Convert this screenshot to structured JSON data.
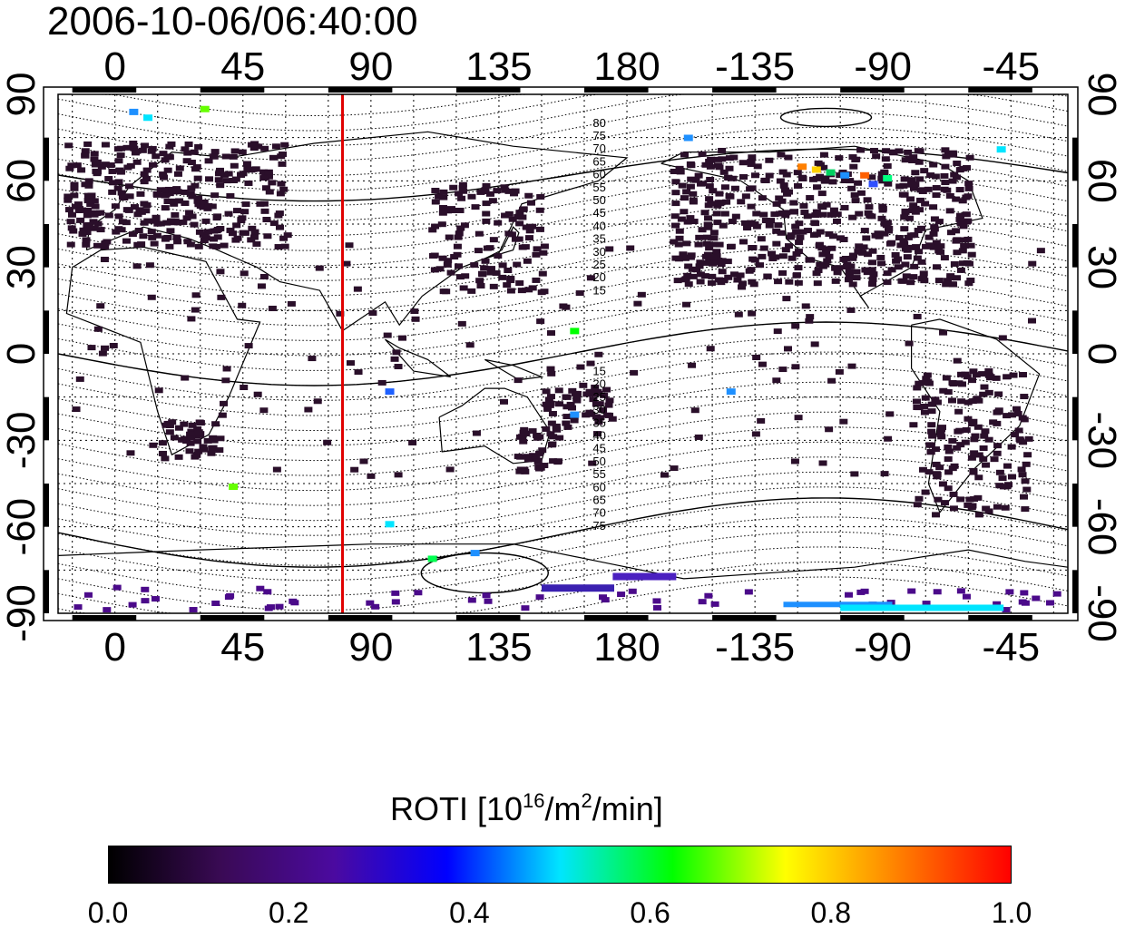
{
  "title": "2006-10-06/06:40:00",
  "map": {
    "top_lon_labels": [
      "0",
      "45",
      "90",
      "135",
      "180",
      "-135",
      "-90",
      "-45"
    ],
    "bottom_lon_labels": [
      "0",
      "45",
      "90",
      "135",
      "180",
      "-135",
      "-90",
      "-45"
    ],
    "left_lat_labels": [
      "90",
      "60",
      "30",
      "0",
      "-30",
      "-60",
      "-90"
    ],
    "right_lat_labels": [
      "90",
      "60",
      "30",
      "0",
      "-30",
      "-60",
      "-90"
    ],
    "lon_values": [
      0,
      45,
      90,
      135,
      180,
      225,
      270,
      315
    ],
    "lat_values": [
      90,
      60,
      30,
      0,
      -30,
      -60,
      -90
    ],
    "lon_range": [
      -20,
      335
    ],
    "lat_range": [
      -90,
      90
    ],
    "marker_line_lon": 80,
    "marker_line_color": "#e00000",
    "north_contour_labels": [
      "80",
      "75",
      "70",
      "65",
      "60",
      "55",
      "50",
      "45",
      "40",
      "35",
      "30",
      "25",
      "20",
      "15"
    ],
    "south_contour_labels": [
      "15",
      "20",
      "25",
      "30",
      "35",
      "40",
      "45",
      "50",
      "55",
      "60",
      "65",
      "70",
      "75"
    ]
  },
  "colorbar": {
    "title_main": "ROTI  [10",
    "title_exp1": "16",
    "title_mid": "/m",
    "title_exp2": "2",
    "title_end": "/min]",
    "labels": [
      "0.0",
      "0.2",
      "0.4",
      "0.6",
      "0.8",
      "1.0"
    ],
    "stops": [
      "#000000",
      "#3a0a55",
      "#4b0aa0",
      "#0000ff",
      "#00e5ff",
      "#00ff00",
      "#ffff00",
      "#ff8000",
      "#ff0000"
    ]
  }
}
